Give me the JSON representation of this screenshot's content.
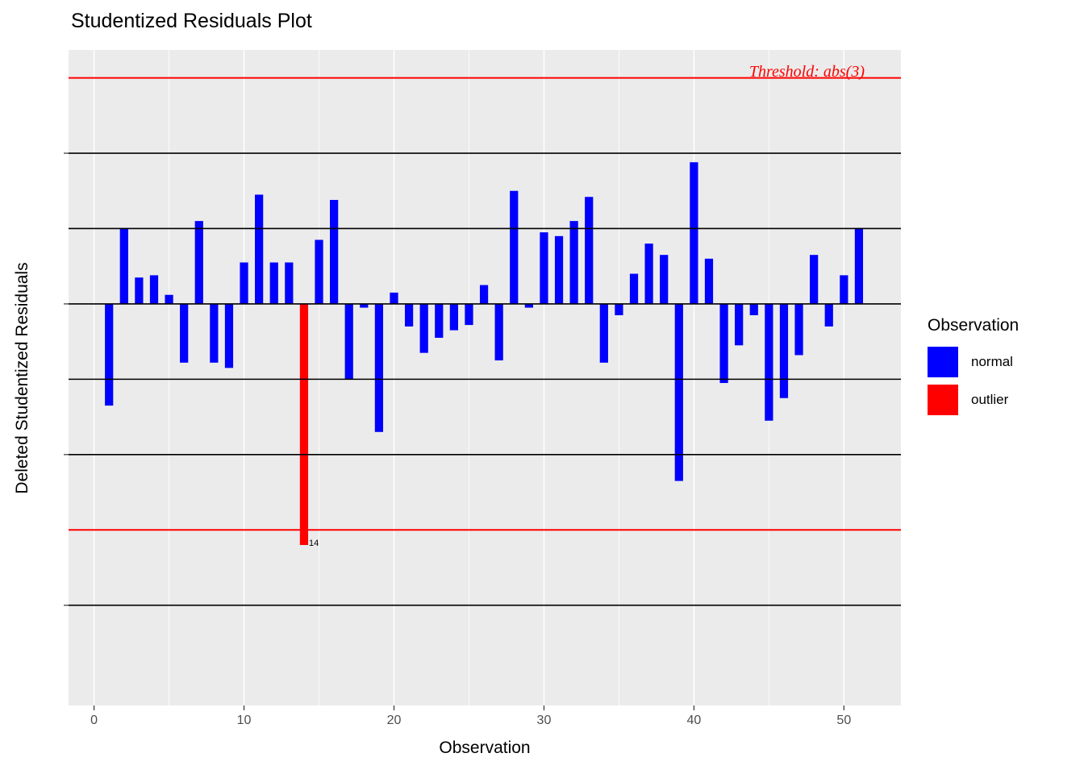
{
  "chart_data": {
    "type": "bar",
    "title": "Studentized Residuals Plot",
    "xlabel": "Observation",
    "ylabel": "Deleted Studentized Residuals",
    "x": [
      1,
      2,
      3,
      4,
      5,
      6,
      7,
      8,
      9,
      10,
      11,
      12,
      13,
      14,
      15,
      16,
      17,
      18,
      19,
      20,
      21,
      22,
      23,
      24,
      25,
      26,
      27,
      28,
      29,
      30,
      31,
      32,
      33,
      34,
      35,
      36,
      37,
      38,
      39,
      40,
      41,
      42,
      43,
      44,
      45,
      46,
      47,
      48,
      49,
      50,
      51
    ],
    "values": [
      -1.35,
      1.0,
      0.35,
      0.38,
      0.12,
      -0.78,
      1.1,
      -0.78,
      -0.85,
      0.55,
      1.45,
      0.55,
      0.55,
      -3.2,
      0.85,
      1.38,
      -1.0,
      -0.05,
      -1.7,
      0.15,
      -0.3,
      -0.65,
      -0.45,
      -0.35,
      -0.28,
      0.25,
      -0.75,
      1.5,
      -0.05,
      0.95,
      0.9,
      1.1,
      1.42,
      -0.78,
      -0.15,
      0.4,
      0.8,
      0.65,
      -2.35,
      1.88,
      0.6,
      -1.05,
      -0.55,
      -0.15,
      -1.55,
      -1.25,
      -0.68,
      0.65,
      -0.3,
      0.38,
      1.0
    ],
    "outlier_observations": [
      14
    ],
    "outlier_label": "14",
    "annotation": "Threshold: abs(3)",
    "threshold_lines_y": [
      3,
      -3
    ],
    "black_gridlines_y": [
      -4,
      -2,
      -1,
      0,
      1,
      2
    ],
    "x_ticks": [
      0,
      10,
      20,
      30,
      40,
      50
    ],
    "x_minor_ticks": [
      5,
      15,
      25,
      35,
      45
    ],
    "y_ticks": [
      2,
      0,
      -2,
      -4
    ],
    "xlim": [
      -1.7,
      53.8
    ],
    "ylim": [
      -5.33,
      3.37
    ],
    "bar_width": 0.55,
    "colors": {
      "normal": "#0000FF",
      "outlier": "#FF0000",
      "threshold": "#FF0000",
      "gridline_black": "#000000",
      "panel_bg": "#EBEBEB",
      "grid_white": "#FFFFFF",
      "tick_text": "#4D4D4D"
    },
    "legend_position": "right",
    "grid": true
  },
  "legend": {
    "title": "Observation",
    "items": [
      {
        "label": "normal",
        "color": "#0000FF"
      },
      {
        "label": "outlier",
        "color": "#FF0000"
      }
    ]
  }
}
